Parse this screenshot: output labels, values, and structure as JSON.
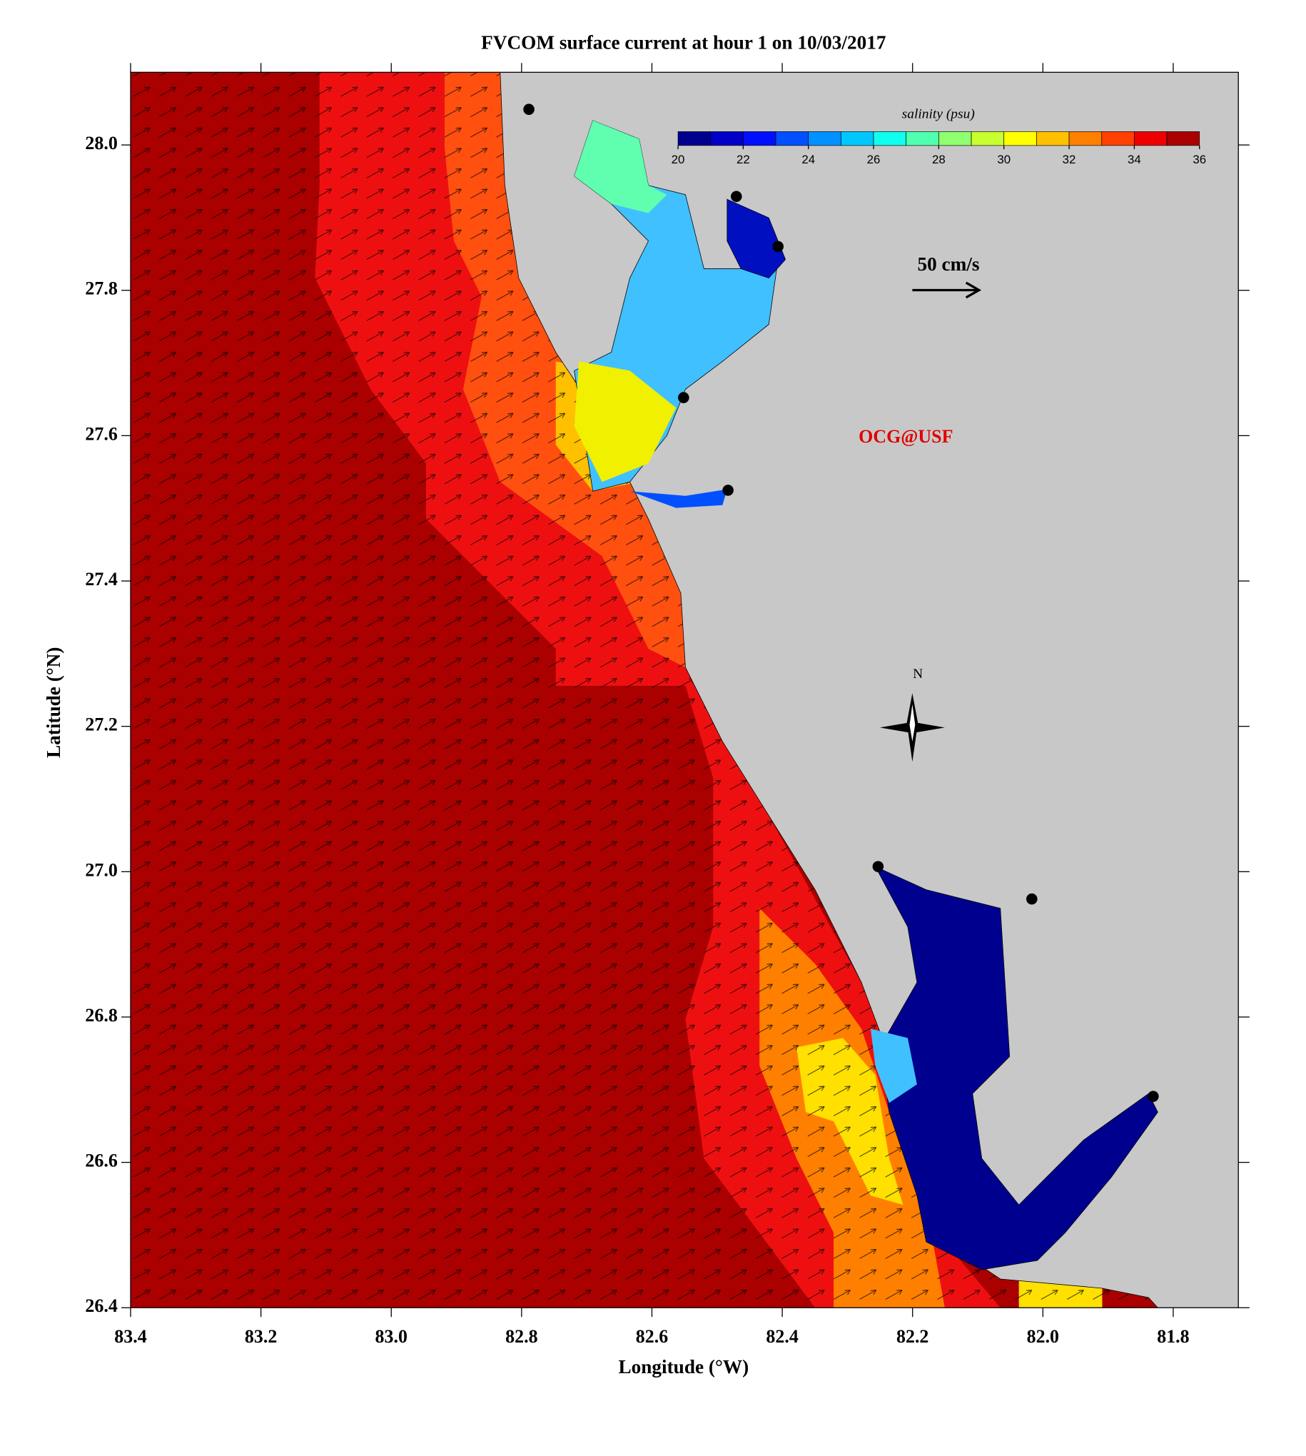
{
  "title": "FVCOM surface current at hour 1 on 10/03/2017",
  "xlabel": "Longitude (°W)",
  "ylabel": "Latitude (°N)",
  "xlim": [
    83.4,
    81.7
  ],
  "ylim": [
    26.4,
    28.1
  ],
  "xticks": [
    83.4,
    83.2,
    {
      "value": 83.0,
      "label": "83.0"
    },
    82.8,
    82.6,
    82.4,
    82.2,
    {
      "value": 82.0,
      "label": "82.0"
    },
    81.8
  ],
  "yticks": [
    26.4,
    26.6,
    26.8,
    {
      "value": 27.0,
      "label": "27.0"
    },
    27.2,
    27.4,
    27.6,
    27.8,
    {
      "value": 28.0,
      "label": "28.0"
    }
  ],
  "colorbar": {
    "label": "salinity (psu)",
    "lim": [
      20,
      36
    ],
    "ticks": [
      20,
      22,
      24,
      26,
      28,
      30,
      32,
      34,
      36
    ],
    "colors": [
      "#00008f",
      "#0000c8",
      "#0010ff",
      "#0050ff",
      "#0090ff",
      "#00c8ff",
      "#10ffef",
      "#50ffaf",
      "#90ff6f",
      "#c8ff30",
      "#ffff00",
      "#ffc000",
      "#ff8000",
      "#ff4000",
      "#ee0000",
      "#aa0000"
    ]
  },
  "scale_label": "50 cm/s",
  "compass": "N",
  "credit": "OCG@USF"
}
